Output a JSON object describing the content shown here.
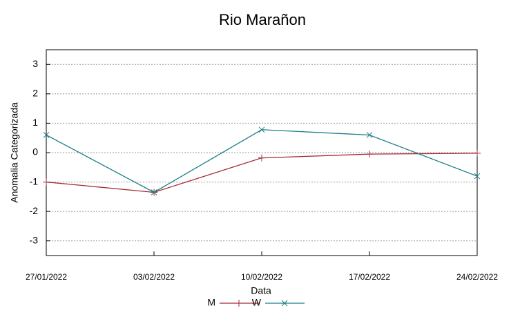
{
  "chart_data": {
    "type": "line",
    "title": "Rio Marañon",
    "x_label": "Data",
    "y_label": "Anomalia Categorizada",
    "categories": [
      "27/01/2022",
      "03/02/2022",
      "10/02/2022",
      "17/02/2022",
      "24/02/2022"
    ],
    "series": [
      {
        "name": "M",
        "color": "#a52a35",
        "marker": "+",
        "values": [
          -1.0,
          -1.35,
          -0.18,
          -0.05,
          -0.02
        ]
      },
      {
        "name": "W",
        "color": "#1a7f86",
        "marker": "x",
        "values": [
          0.6,
          -1.35,
          0.78,
          0.6,
          -0.8
        ]
      }
    ],
    "ylim": [
      -3.5,
      3.5
    ],
    "yticks": [
      -3,
      -2,
      -1,
      0,
      1,
      2,
      3
    ],
    "grid": true
  }
}
